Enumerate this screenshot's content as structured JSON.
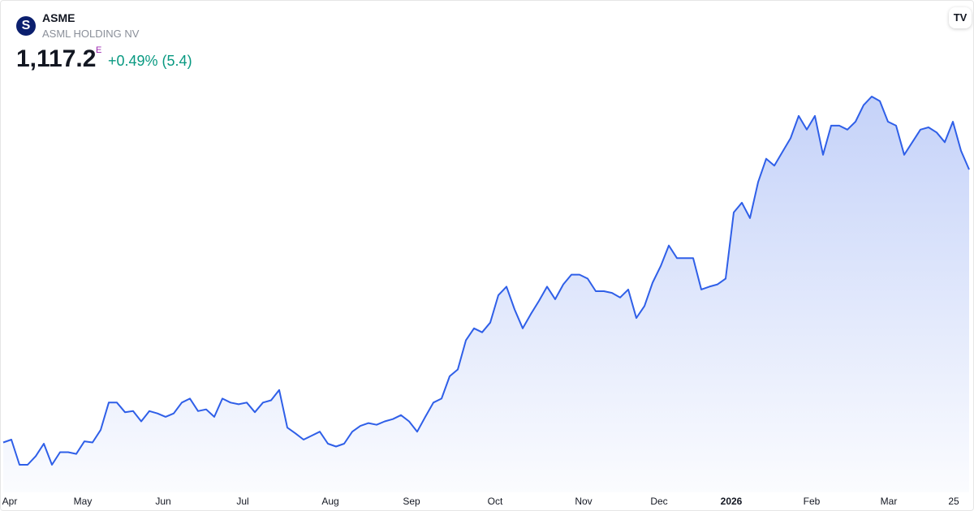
{
  "header": {
    "symbol": "ASME",
    "name": "ASML HOLDING NV",
    "price": "1,117.2",
    "price_flag": "E",
    "change": "+0.49% (5.4)"
  },
  "chart_data": {
    "type": "area",
    "color": "#2f5fe8",
    "values": [
      639,
      644,
      600,
      600,
      615,
      637,
      600,
      622,
      622,
      619,
      641,
      639,
      661,
      709,
      709,
      692,
      694,
      676,
      694,
      690,
      684,
      690,
      709,
      716,
      694,
      697,
      684,
      716,
      709,
      706,
      709,
      692,
      709,
      713,
      731,
      665,
      655,
      644,
      651,
      658,
      637,
      632,
      637,
      658,
      668,
      673,
      670,
      676,
      680,
      687,
      676,
      658,
      684,
      709,
      716,
      755,
      767,
      818,
      839,
      832,
      849,
      897,
      912,
      872,
      839,
      864,
      887,
      912,
      890,
      916,
      933,
      933,
      926,
      904,
      904,
      901,
      893,
      907,
      857,
      878,
      919,
      948,
      984,
      962,
      962,
      962,
      907,
      912,
      916,
      926,
      1042,
      1059,
      1032,
      1095,
      1136,
      1124,
      1148,
      1172,
      1211,
      1187,
      1211,
      1143,
      1194,
      1194,
      1187,
      1201,
      1230,
      1245,
      1237,
      1201,
      1194,
      1143,
      1165,
      1187,
      1191,
      1182,
      1165,
      1201,
      1150,
      1117.2
    ],
    "xticks": [
      {
        "value": 0.8,
        "label": "Apr"
      },
      {
        "value": 9.8,
        "label": "May"
      },
      {
        "value": 19.7,
        "label": "Jun"
      },
      {
        "value": 29.5,
        "label": "Jul"
      },
      {
        "value": 40.3,
        "label": "Aug"
      },
      {
        "value": 50.3,
        "label": "Sep"
      },
      {
        "value": 60.6,
        "label": "Oct"
      },
      {
        "value": 71.5,
        "label": "Nov"
      },
      {
        "value": 80.8,
        "label": "Dec"
      },
      {
        "value": 89.7,
        "label": "2026"
      },
      {
        "value": 99.6,
        "label": "Feb"
      },
      {
        "value": 109.1,
        "label": "Mar"
      },
      {
        "value": 117.1,
        "label": "25"
      }
    ]
  }
}
